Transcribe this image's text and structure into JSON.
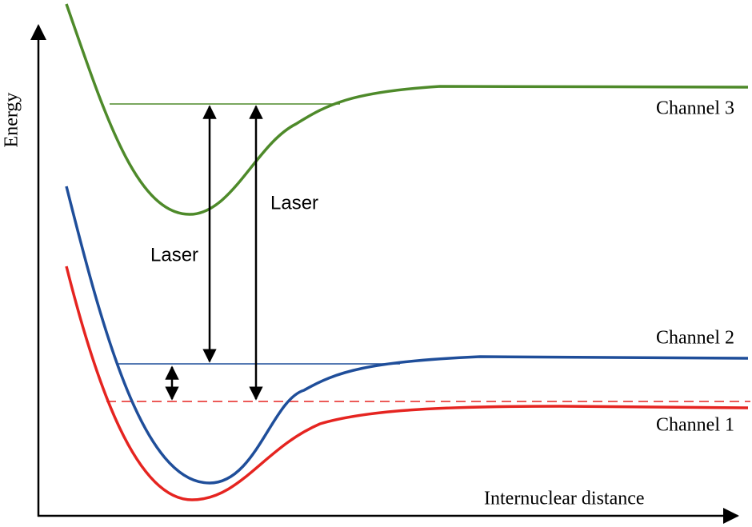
{
  "axes": {
    "y_label": "Energy",
    "x_label": "Internuclear distance"
  },
  "curves": [
    {
      "label": "Channel 3"
    },
    {
      "label": "Channel 2"
    },
    {
      "label": "Channel 1"
    }
  ],
  "arrows": [
    {
      "label": "Laser"
    },
    {
      "label": "Laser"
    }
  ]
}
